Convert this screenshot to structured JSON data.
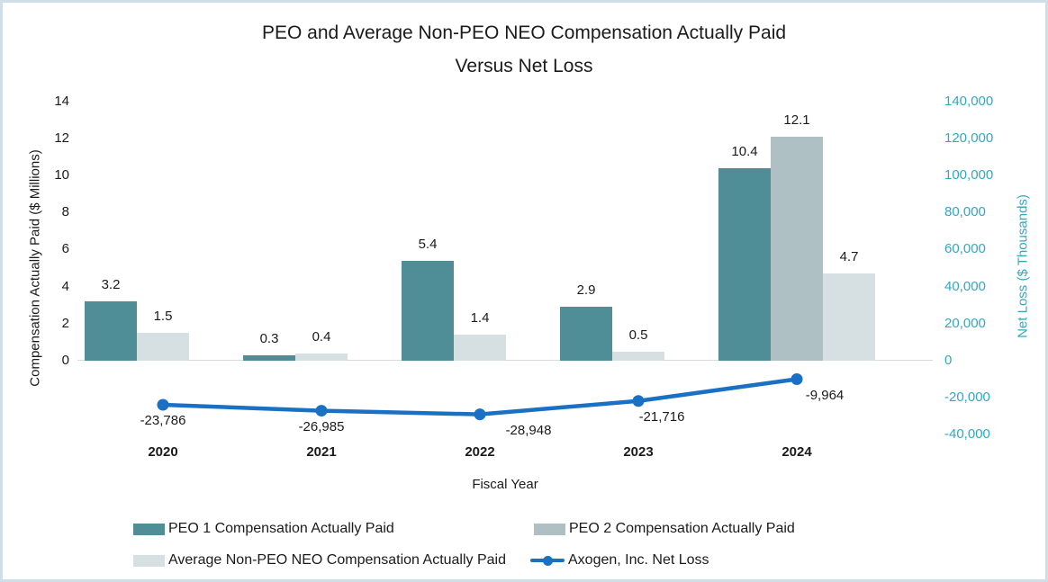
{
  "title": {
    "line1": "PEO and Average Non-PEO NEO Compensation Actually Paid",
    "line2": "Versus Net Loss"
  },
  "chart_data": {
    "type": "bar+line combo",
    "categories": [
      "2020",
      "2021",
      "2022",
      "2023",
      "2024"
    ],
    "xlabel": "Fiscal Year",
    "grid": "zero-baseline only, no gridlines",
    "legend_position": "bottom",
    "left_axis": {
      "title": "Compensation Actually Paid ($ Millions)",
      "ticks": [
        0,
        2,
        4,
        6,
        8,
        10,
        12,
        14
      ],
      "range": [
        -4,
        14
      ],
      "color": "#1b1b1b"
    },
    "right_axis": {
      "title": "Net Loss ($ Thousands)",
      "ticks": [
        140000,
        120000,
        100000,
        80000,
        60000,
        40000,
        20000,
        0,
        -20000,
        -40000
      ],
      "tick_labels": [
        "140,000",
        "120,000",
        "100,000",
        "80,000",
        "60,000",
        "40,000",
        "20,000",
        "0",
        "-20,000",
        "-40,000"
      ],
      "range": [
        -40000,
        140000
      ],
      "color": "#31a7c4"
    },
    "bar_series": [
      {
        "name": "PEO 1 Compensation Actually Paid",
        "color": "#4f8d97",
        "values": [
          3.2,
          0.3,
          5.4,
          2.9,
          10.4
        ],
        "value_labels": [
          "3.2",
          "0.3",
          "5.4",
          "2.9",
          "10.4"
        ]
      },
      {
        "name": "PEO 2 Compensation Actually Paid",
        "color": "#aec0c4",
        "values": [
          null,
          null,
          null,
          null,
          12.1
        ],
        "value_labels": [
          null,
          null,
          null,
          null,
          "12.1"
        ]
      },
      {
        "name": "Average Non-PEO NEO Compensation Actually Paid",
        "color": "#d6e0e3",
        "values": [
          1.5,
          0.4,
          1.4,
          0.5,
          4.7
        ],
        "value_labels": [
          "1.5",
          "0.4",
          "1.4",
          "0.5",
          "4.7"
        ]
      }
    ],
    "line_series": {
      "name": "Axogen, Inc. Net Loss",
      "color": "#1a70c2",
      "axis": "right",
      "values": [
        -23786,
        -26985,
        -28948,
        -21716,
        -9964
      ],
      "value_labels": [
        "-23,786",
        "-26,985",
        "-28,948",
        "-21,716",
        "-9,964"
      ]
    }
  }
}
